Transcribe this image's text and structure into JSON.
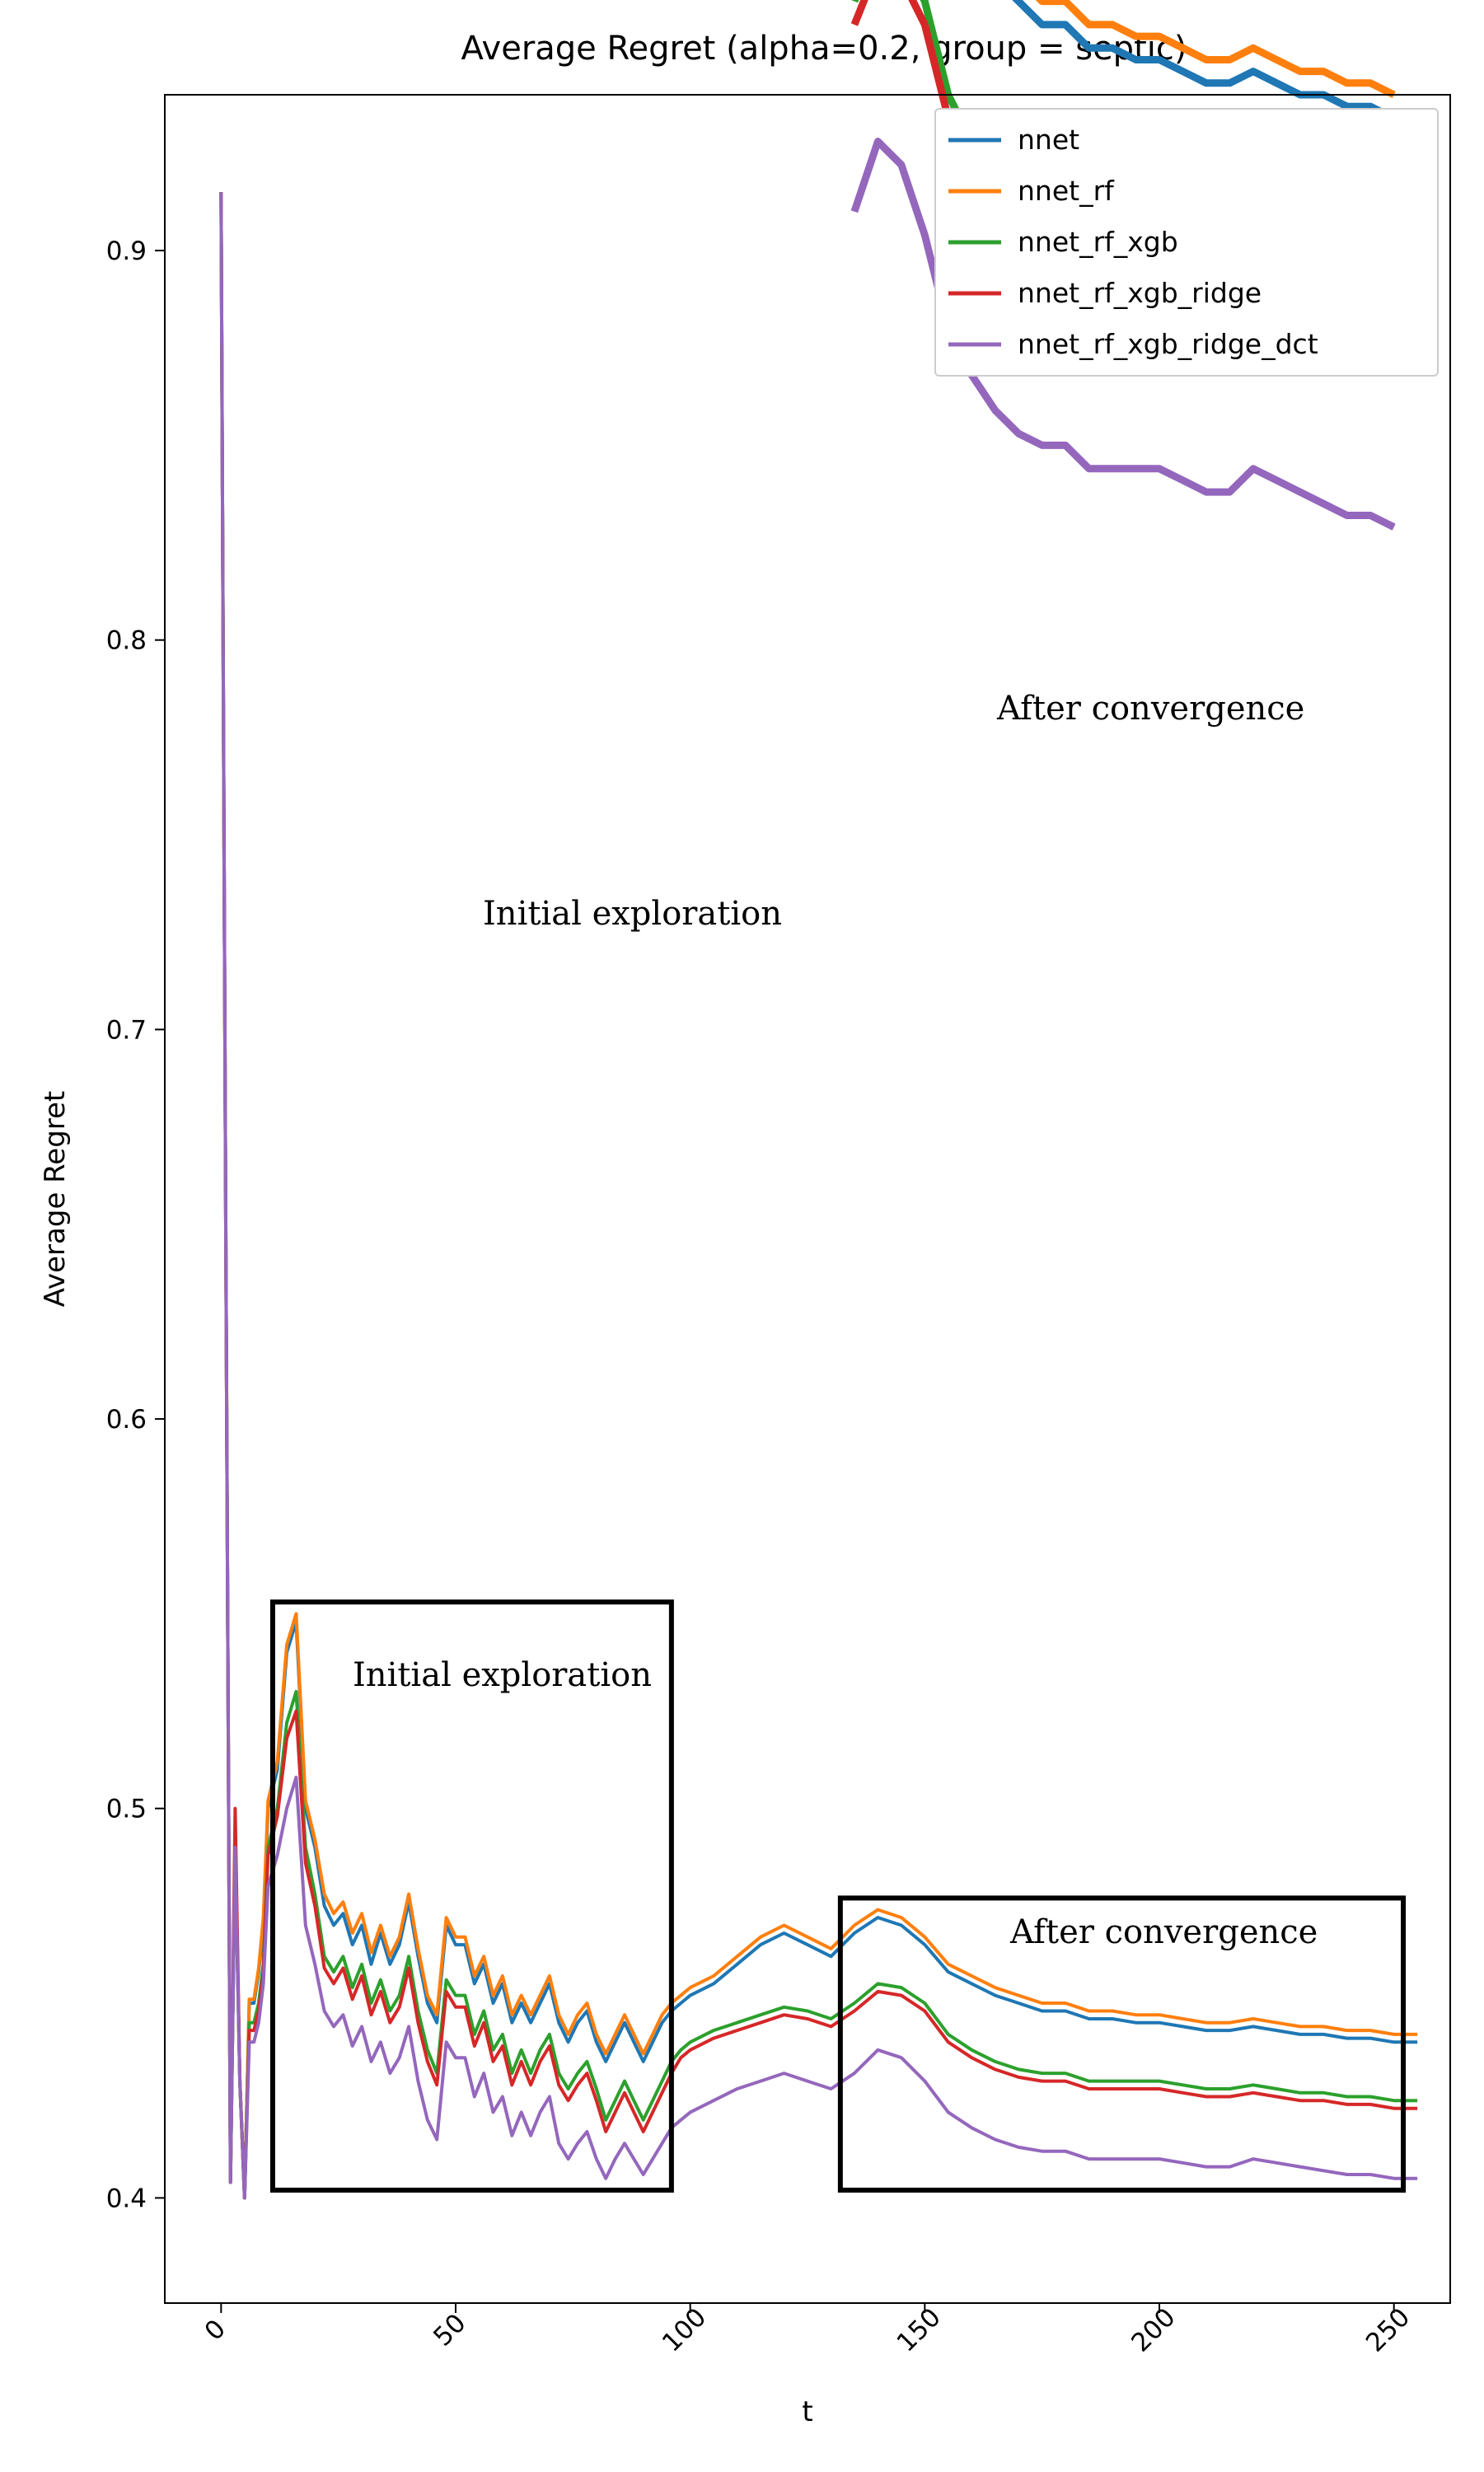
{
  "chart_data": {
    "type": "line",
    "title": "Average Regret (alpha=0.2, group = septic)",
    "xlabel": "t",
    "ylabel": "Average Regret",
    "xlim": [
      -12,
      262
    ],
    "ylim": [
      0.373,
      0.94
    ],
    "xticks": [
      0,
      50,
      100,
      150,
      200,
      250
    ],
    "xtick_labels": [
      "0",
      "50",
      "100",
      "150",
      "200",
      "250"
    ],
    "yticks": [
      0.4,
      0.5,
      0.6,
      0.7,
      0.8,
      0.9
    ],
    "ytick_labels": [
      "0.4",
      "0.5",
      "0.6",
      "0.7",
      "0.8",
      "0.9"
    ],
    "legend_position": "top-right",
    "x": [
      0,
      1,
      2,
      3,
      4,
      5,
      6,
      7,
      8,
      9,
      10,
      12,
      14,
      16,
      18,
      20,
      22,
      24,
      26,
      28,
      30,
      32,
      34,
      36,
      38,
      40,
      42,
      44,
      46,
      48,
      50,
      52,
      54,
      56,
      58,
      60,
      62,
      64,
      66,
      68,
      70,
      72,
      74,
      76,
      78,
      80,
      82,
      84,
      86,
      88,
      90,
      92,
      94,
      96,
      98,
      100,
      105,
      110,
      115,
      120,
      125,
      130,
      135,
      140,
      145,
      150,
      155,
      160,
      165,
      170,
      175,
      180,
      185,
      190,
      195,
      200,
      205,
      210,
      215,
      220,
      225,
      230,
      235,
      240,
      245,
      250,
      255
    ],
    "series": [
      {
        "name": "nnet",
        "color": "#1f77b4",
        "values": [
          0.915,
          0.65,
          0.404,
          0.49,
          0.43,
          0.4,
          0.45,
          0.45,
          0.458,
          0.47,
          0.5,
          0.51,
          0.54,
          0.548,
          0.5,
          0.49,
          0.475,
          0.47,
          0.473,
          0.465,
          0.47,
          0.46,
          0.468,
          0.46,
          0.465,
          0.476,
          0.462,
          0.45,
          0.445,
          0.47,
          0.465,
          0.465,
          0.455,
          0.46,
          0.45,
          0.455,
          0.445,
          0.45,
          0.445,
          0.45,
          0.455,
          0.445,
          0.44,
          0.445,
          0.448,
          0.44,
          0.435,
          0.44,
          0.445,
          0.44,
          0.435,
          0.44,
          0.445,
          0.448,
          0.45,
          0.452,
          0.455,
          0.46,
          0.465,
          0.468,
          0.465,
          0.462,
          0.468,
          0.472,
          0.47,
          0.465,
          0.458,
          0.455,
          0.452,
          0.45,
          0.448,
          0.448,
          0.446,
          0.446,
          0.445,
          0.445,
          0.444,
          0.443,
          0.443,
          0.444,
          0.443,
          0.442,
          0.442,
          0.441,
          0.441,
          0.44,
          0.44
        ]
      },
      {
        "name": "nnet_rf",
        "color": "#ff7f0e",
        "values": [
          0.915,
          0.65,
          0.404,
          0.49,
          0.43,
          0.4,
          0.451,
          0.451,
          0.459,
          0.472,
          0.502,
          0.512,
          0.542,
          0.55,
          0.502,
          0.492,
          0.478,
          0.473,
          0.476,
          0.468,
          0.473,
          0.463,
          0.47,
          0.462,
          0.467,
          0.478,
          0.464,
          0.452,
          0.447,
          0.472,
          0.467,
          0.467,
          0.457,
          0.462,
          0.452,
          0.457,
          0.447,
          0.452,
          0.447,
          0.452,
          0.457,
          0.447,
          0.442,
          0.447,
          0.45,
          0.442,
          0.437,
          0.442,
          0.447,
          0.442,
          0.437,
          0.442,
          0.447,
          0.45,
          0.452,
          0.454,
          0.457,
          0.462,
          0.467,
          0.47,
          0.467,
          0.464,
          0.47,
          0.474,
          0.472,
          0.467,
          0.46,
          0.457,
          0.454,
          0.452,
          0.45,
          0.45,
          0.448,
          0.448,
          0.447,
          0.447,
          0.446,
          0.445,
          0.445,
          0.446,
          0.445,
          0.444,
          0.444,
          0.443,
          0.443,
          0.442,
          0.442
        ]
      },
      {
        "name": "nnet_rf_xgb",
        "color": "#2ca02c",
        "values": [
          0.915,
          0.65,
          0.404,
          0.49,
          0.43,
          0.4,
          0.445,
          0.445,
          0.45,
          0.46,
          0.49,
          0.5,
          0.522,
          0.53,
          0.49,
          0.478,
          0.462,
          0.458,
          0.462,
          0.454,
          0.46,
          0.45,
          0.456,
          0.448,
          0.452,
          0.462,
          0.448,
          0.438,
          0.432,
          0.456,
          0.452,
          0.452,
          0.442,
          0.448,
          0.438,
          0.442,
          0.432,
          0.438,
          0.432,
          0.438,
          0.442,
          0.432,
          0.428,
          0.432,
          0.435,
          0.428,
          0.42,
          0.425,
          0.43,
          0.425,
          0.42,
          0.425,
          0.43,
          0.435,
          0.438,
          0.44,
          0.443,
          0.445,
          0.447,
          0.449,
          0.448,
          0.446,
          0.45,
          0.455,
          0.454,
          0.45,
          0.442,
          0.438,
          0.435,
          0.433,
          0.432,
          0.432,
          0.43,
          0.43,
          0.43,
          0.43,
          0.429,
          0.428,
          0.428,
          0.429,
          0.428,
          0.427,
          0.427,
          0.426,
          0.426,
          0.425,
          0.425
        ]
      },
      {
        "name": "nnet_rf_xgb_ridge",
        "color": "#d62728",
        "values": [
          0.915,
          0.65,
          0.404,
          0.5,
          0.43,
          0.4,
          0.443,
          0.443,
          0.448,
          0.458,
          0.488,
          0.498,
          0.518,
          0.525,
          0.486,
          0.475,
          0.459,
          0.455,
          0.459,
          0.451,
          0.457,
          0.447,
          0.453,
          0.445,
          0.449,
          0.459,
          0.445,
          0.435,
          0.429,
          0.453,
          0.449,
          0.449,
          0.439,
          0.445,
          0.435,
          0.439,
          0.429,
          0.435,
          0.429,
          0.435,
          0.439,
          0.429,
          0.425,
          0.429,
          0.432,
          0.425,
          0.417,
          0.422,
          0.427,
          0.422,
          0.417,
          0.422,
          0.427,
          0.432,
          0.436,
          0.438,
          0.441,
          0.443,
          0.445,
          0.447,
          0.446,
          0.444,
          0.448,
          0.453,
          0.452,
          0.448,
          0.44,
          0.436,
          0.433,
          0.431,
          0.43,
          0.43,
          0.428,
          0.428,
          0.428,
          0.428,
          0.427,
          0.426,
          0.426,
          0.427,
          0.426,
          0.425,
          0.425,
          0.424,
          0.424,
          0.423,
          0.423
        ]
      },
      {
        "name": "nnet_rf_xgb_ridge_dct",
        "color": "#9467bd",
        "values": [
          0.915,
          0.65,
          0.404,
          0.49,
          0.43,
          0.4,
          0.44,
          0.44,
          0.445,
          0.455,
          0.48,
          0.488,
          0.5,
          0.508,
          0.47,
          0.46,
          0.448,
          0.444,
          0.447,
          0.439,
          0.444,
          0.435,
          0.44,
          0.432,
          0.436,
          0.444,
          0.43,
          0.42,
          0.415,
          0.44,
          0.436,
          0.436,
          0.426,
          0.432,
          0.422,
          0.426,
          0.416,
          0.422,
          0.416,
          0.422,
          0.426,
          0.414,
          0.41,
          0.414,
          0.417,
          0.41,
          0.405,
          0.41,
          0.414,
          0.41,
          0.406,
          0.41,
          0.414,
          0.418,
          0.42,
          0.422,
          0.425,
          0.428,
          0.43,
          0.432,
          0.43,
          0.428,
          0.432,
          0.438,
          0.436,
          0.43,
          0.422,
          0.418,
          0.415,
          0.413,
          0.412,
          0.412,
          0.41,
          0.41,
          0.41,
          0.41,
          0.409,
          0.408,
          0.408,
          0.41,
          0.409,
          0.408,
          0.407,
          0.406,
          0.406,
          0.405,
          0.405
        ]
      }
    ],
    "annotations": [
      {
        "name": "initial-box",
        "label": "Initial exploration",
        "x_range": [
          11,
          96
        ],
        "y_range": [
          0.402,
          0.553
        ]
      },
      {
        "name": "convergence-box",
        "label": "After convergence",
        "x_range": [
          132,
          252
        ],
        "y_range": [
          0.402,
          0.477
        ]
      },
      {
        "name": "initial-zoom",
        "label": "Initial exploration"
      },
      {
        "name": "convergence-zoom",
        "label": "After convergence"
      }
    ]
  }
}
